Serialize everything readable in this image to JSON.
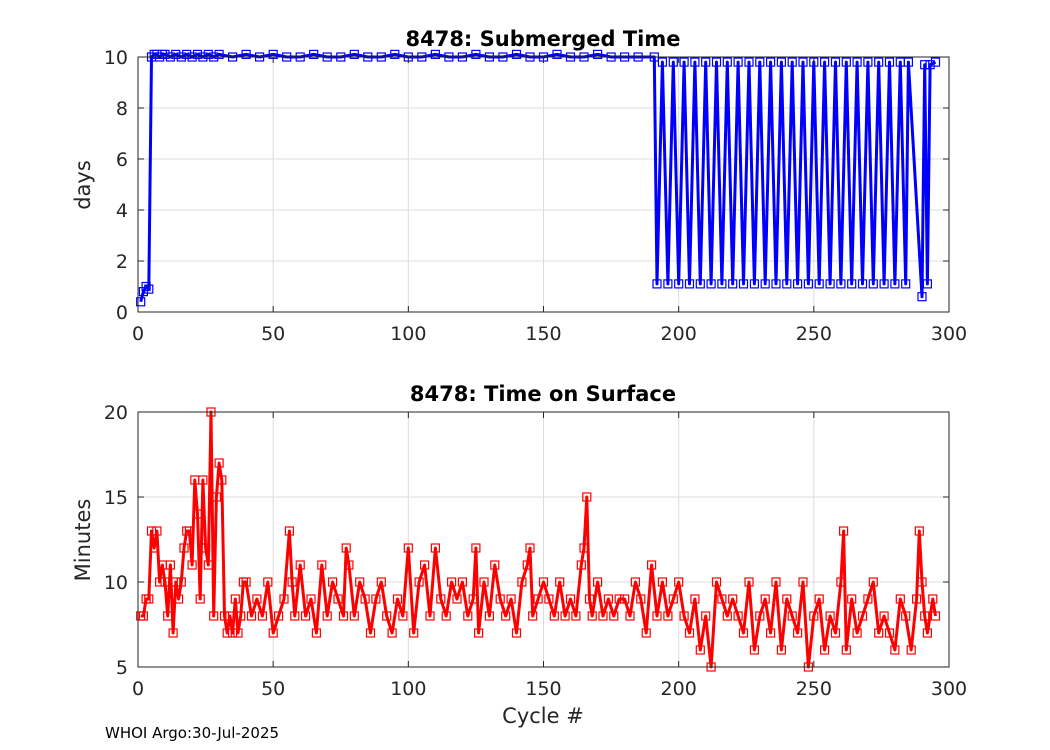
{
  "footer": "WHOI Argo:30-Jul-2025",
  "chart_data": [
    {
      "type": "line",
      "title": "8478: Submerged Time",
      "xlabel": "",
      "ylabel": "days",
      "xlim": [
        0,
        300
      ],
      "ylim": [
        0,
        10
      ],
      "xticks": [
        "0",
        "50",
        "100",
        "150",
        "200",
        "250",
        "300"
      ],
      "yticks": [
        "0",
        "2",
        "4",
        "6",
        "8",
        "10"
      ],
      "grid": true,
      "marker": "square",
      "color": "#0000ff",
      "series": [
        {
          "x": [
            1,
            2,
            3,
            4,
            5,
            6,
            7,
            8,
            9,
            10,
            12,
            14,
            16,
            18,
            20,
            22,
            24,
            26,
            28,
            30,
            35,
            40,
            45,
            50,
            55,
            60,
            65,
            70,
            75,
            80,
            85,
            90,
            95,
            100,
            105,
            110,
            115,
            120,
            125,
            130,
            135,
            140,
            145,
            150,
            155,
            160,
            165,
            170,
            175,
            180,
            185,
            191,
            192,
            194,
            196,
            198,
            200,
            202,
            204,
            206,
            208,
            210,
            212,
            214,
            216,
            218,
            220,
            222,
            224,
            226,
            228,
            230,
            232,
            234,
            236,
            238,
            240,
            242,
            244,
            246,
            248,
            250,
            252,
            254,
            256,
            258,
            260,
            262,
            264,
            266,
            268,
            270,
            272,
            274,
            276,
            278,
            280,
            282,
            284,
            285,
            290,
            291,
            292,
            293,
            295
          ],
          "y": [
            0.4,
            0.8,
            1.0,
            0.9,
            10.0,
            10.1,
            10.1,
            10.0,
            10.1,
            10.1,
            10.0,
            10.1,
            10.0,
            10.1,
            10.0,
            10.1,
            10.0,
            10.1,
            10.0,
            10.1,
            10.0,
            10.1,
            10.0,
            10.1,
            10.0,
            10.0,
            10.1,
            10.0,
            10.0,
            10.1,
            10.0,
            10.0,
            10.1,
            10.0,
            10.0,
            10.1,
            10.0,
            10.0,
            10.1,
            10.0,
            10.0,
            10.1,
            10.0,
            10.0,
            10.1,
            10.0,
            10.0,
            10.1,
            10.0,
            10.0,
            10.0,
            10.0,
            1.1,
            9.8,
            1.1,
            9.8,
            1.1,
            9.8,
            1.1,
            9.8,
            1.1,
            9.8,
            1.1,
            9.8,
            1.1,
            9.8,
            1.1,
            9.8,
            1.1,
            9.8,
            1.1,
            9.8,
            1.1,
            9.8,
            1.1,
            9.8,
            1.1,
            9.8,
            1.1,
            9.8,
            1.1,
            9.8,
            1.1,
            9.8,
            1.1,
            9.8,
            1.1,
            9.8,
            1.1,
            9.8,
            1.1,
            9.8,
            1.1,
            9.8,
            1.1,
            9.8,
            1.1,
            9.8,
            1.1,
            9.8,
            0.6,
            9.7,
            1.1,
            9.7,
            9.8
          ]
        }
      ]
    },
    {
      "type": "line",
      "title": "8478: Time on Surface",
      "xlabel": "Cycle #",
      "ylabel": "Minutes",
      "xlim": [
        0,
        300
      ],
      "ylim": [
        5,
        20
      ],
      "xticks": [
        "0",
        "50",
        "100",
        "150",
        "200",
        "250",
        "300"
      ],
      "yticks": [
        "5",
        "10",
        "15",
        "20"
      ],
      "grid": true,
      "marker": "square",
      "color": "#ff0000",
      "series": [
        {
          "x": [
            1,
            2,
            3,
            4,
            5,
            6,
            7,
            8,
            9,
            10,
            11,
            12,
            13,
            14,
            15,
            16,
            17,
            18,
            19,
            20,
            21,
            22,
            23,
            24,
            25,
            26,
            27,
            28,
            29,
            30,
            31,
            32,
            33,
            34,
            35,
            36,
            37,
            38,
            39,
            40,
            42,
            44,
            46,
            48,
            50,
            52,
            54,
            56,
            57,
            58,
            60,
            62,
            64,
            66,
            68,
            70,
            72,
            74,
            76,
            77,
            78,
            80,
            82,
            84,
            86,
            88,
            90,
            92,
            94,
            96,
            98,
            100,
            102,
            104,
            106,
            108,
            110,
            112,
            114,
            116,
            118,
            120,
            122,
            124,
            125,
            126,
            128,
            130,
            132,
            134,
            136,
            138,
            140,
            142,
            144,
            145,
            146,
            148,
            150,
            152,
            154,
            156,
            158,
            160,
            162,
            164,
            165,
            166,
            167,
            168,
            170,
            172,
            174,
            176,
            178,
            180,
            182,
            184,
            186,
            188,
            190,
            192,
            194,
            196,
            198,
            200,
            202,
            204,
            206,
            208,
            210,
            212,
            214,
            216,
            218,
            220,
            222,
            224,
            226,
            228,
            230,
            232,
            234,
            236,
            238,
            240,
            242,
            244,
            246,
            248,
            250,
            252,
            254,
            256,
            258,
            260,
            261,
            262,
            264,
            266,
            268,
            270,
            272,
            274,
            276,
            278,
            280,
            282,
            284,
            286,
            288,
            289,
            290,
            291,
            292,
            294,
            295
          ],
          "y": [
            8,
            8,
            9,
            9,
            13,
            12,
            13,
            10,
            11,
            10,
            8,
            11,
            7,
            10,
            9,
            10,
            12,
            13,
            13,
            11,
            16,
            14,
            9,
            16,
            12,
            11,
            20,
            8,
            15,
            17,
            16,
            8,
            7,
            8,
            7,
            9,
            7,
            8,
            10,
            10,
            8,
            9,
            8,
            10,
            7,
            8,
            9,
            13,
            10,
            8,
            11,
            8,
            9,
            7,
            11,
            8,
            10,
            9,
            8,
            12,
            11,
            8,
            10,
            9,
            7,
            9,
            10,
            8,
            7,
            9,
            8,
            12,
            7,
            10,
            11,
            8,
            12,
            9,
            8,
            10,
            9,
            10,
            8,
            9,
            12,
            7,
            10,
            8,
            11,
            9,
            8,
            9,
            7,
            10,
            11,
            12,
            8,
            9,
            10,
            9,
            8,
            10,
            8,
            9,
            8,
            11,
            12,
            15,
            9,
            8,
            10,
            8,
            9,
            8,
            9,
            9,
            8,
            10,
            9,
            7,
            11,
            8,
            10,
            8,
            9,
            10,
            8,
            7,
            9,
            6,
            8,
            5,
            10,
            9,
            8,
            9,
            8,
            7,
            10,
            6,
            8,
            9,
            7,
            10,
            6,
            9,
            8,
            7,
            10,
            5,
            8,
            9,
            6,
            8,
            7,
            10,
            13,
            6,
            9,
            7,
            8,
            9,
            10,
            7,
            8,
            7,
            6,
            9,
            8,
            6,
            9,
            13,
            10,
            8,
            7,
            9,
            8
          ]
        }
      ]
    }
  ]
}
